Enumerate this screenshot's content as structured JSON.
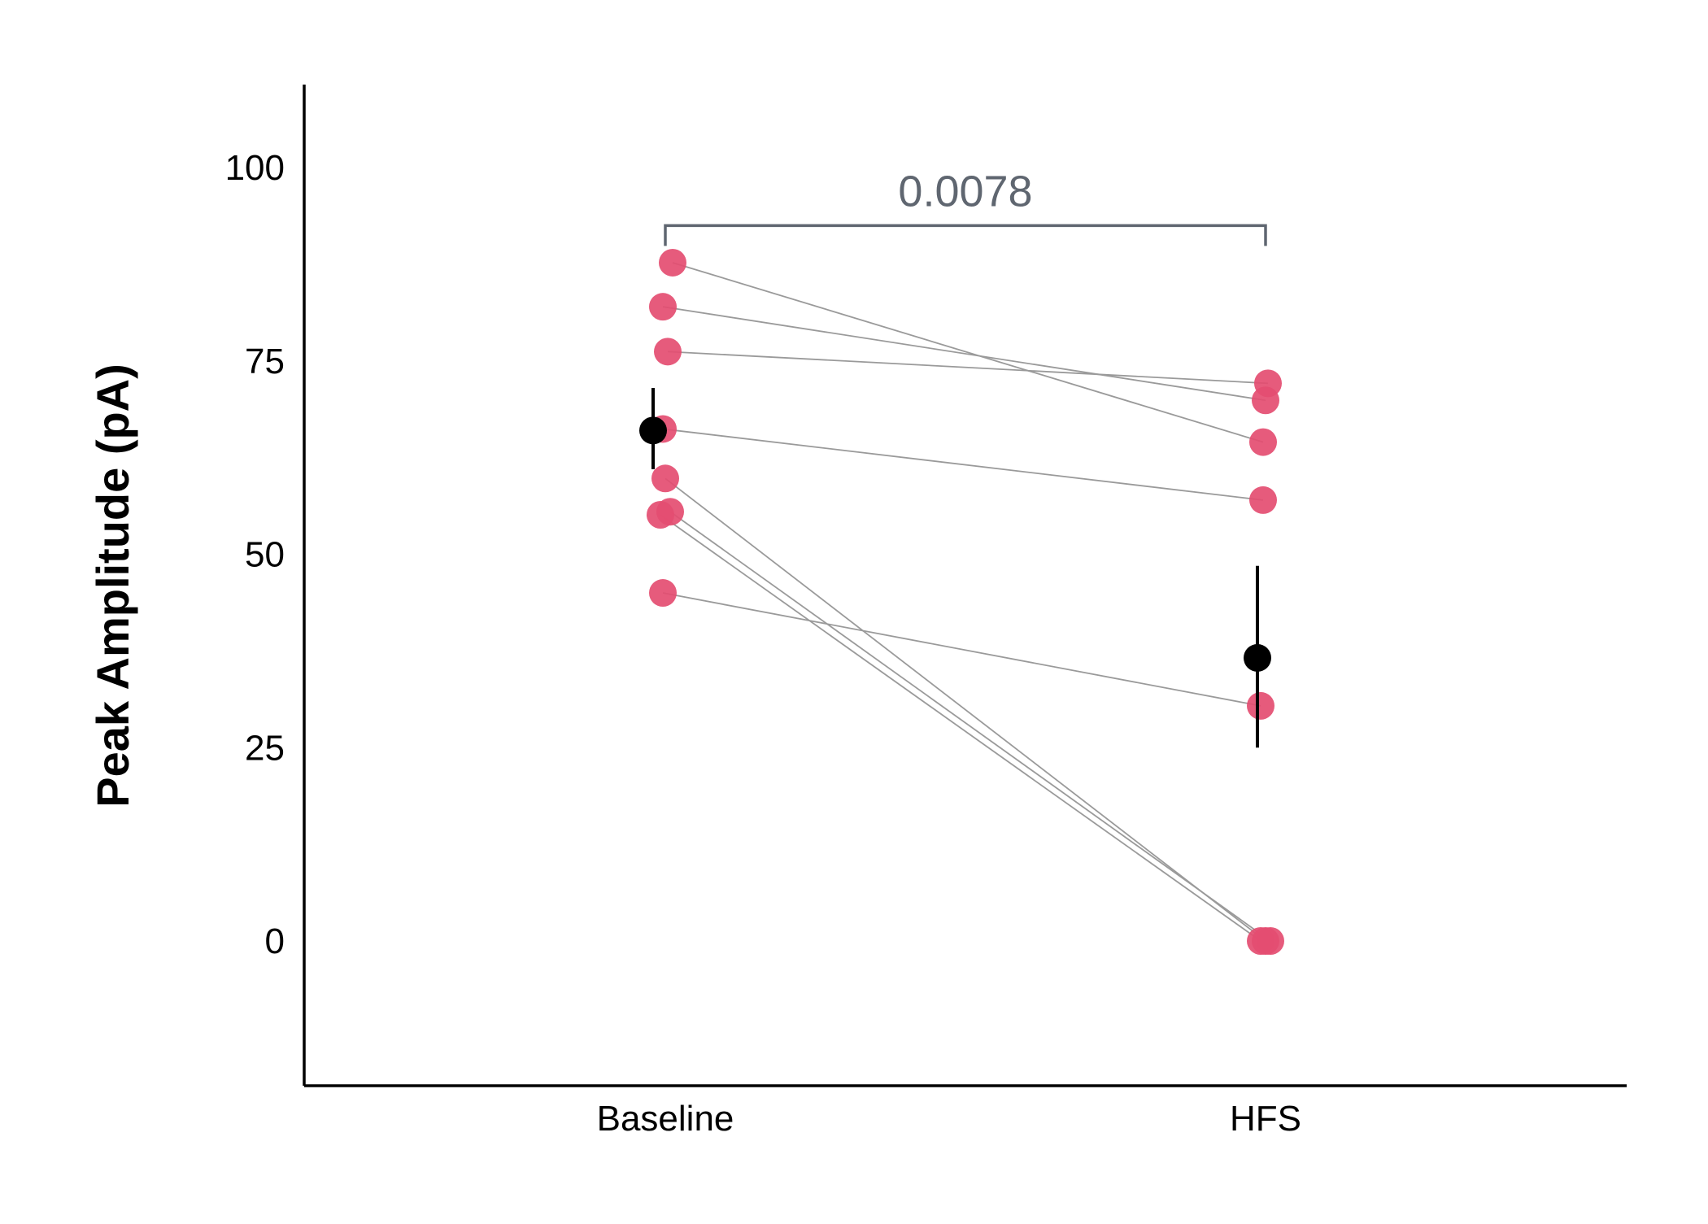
{
  "chart_data": {
    "type": "scatter",
    "title": "",
    "xlabel": "",
    "ylabel": "Peak Amplitude (pA)",
    "categories": [
      "Baseline",
      "HFS"
    ],
    "yticks": [
      0,
      25,
      50,
      75,
      100
    ],
    "ylim": [
      -18,
      110
    ],
    "grid": false,
    "legend": "none",
    "colors": {
      "points": "#e44d71",
      "mean": "#000000",
      "pair_line": "#9a9a9a",
      "bracket": "#5f6670",
      "axis": "#000000"
    },
    "pairs": [
      {
        "x_offset": [
          0.03,
          -0.01
        ],
        "values": [
          87.7,
          64.5
        ]
      },
      {
        "x_offset": [
          -0.01,
          0.0
        ],
        "values": [
          82.0,
          69.9
        ]
      },
      {
        "x_offset": [
          0.01,
          0.01
        ],
        "values": [
          76.2,
          72.1
        ]
      },
      {
        "x_offset": [
          -0.01,
          -0.01
        ],
        "values": [
          66.2,
          57.0
        ]
      },
      {
        "x_offset": [
          0.0,
          0.0
        ],
        "values": [
          59.8,
          0.0
        ]
      },
      {
        "x_offset": [
          -0.02,
          -0.02
        ],
        "values": [
          55.1,
          0.0
        ]
      },
      {
        "x_offset": [
          0.02,
          0.02
        ],
        "values": [
          55.5,
          0.0
        ]
      },
      {
        "x_offset": [
          -0.01,
          -0.02
        ],
        "values": [
          45.0,
          30.4
        ]
      }
    ],
    "summary": [
      {
        "category": "Baseline",
        "mean": 66.0,
        "lower": 61.0,
        "upper": 71.5
      },
      {
        "category": "HFS",
        "mean": 36.6,
        "lower": 25.0,
        "upper": 48.5
      }
    ],
    "annotation": {
      "text": "0.0078",
      "from": "Baseline",
      "to": "HFS",
      "y": 92.5
    }
  }
}
